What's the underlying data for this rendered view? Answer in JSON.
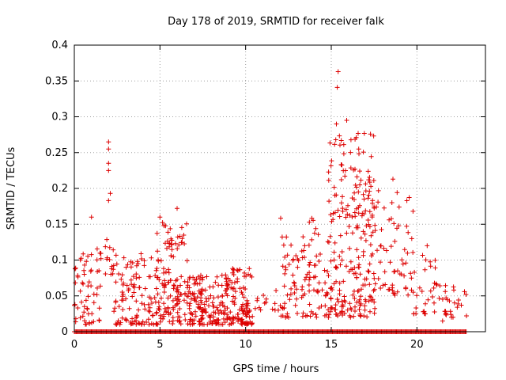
{
  "chart_data": {
    "type": "scatter",
    "title": "Day 178 of 2019, SRMTID for receiver falk",
    "xlabel": "GPS time / hours",
    "ylabel": "SRMTID / TECUs",
    "xlim": [
      0,
      24
    ],
    "ylim": [
      0,
      0.4
    ],
    "grid": true,
    "marker": "+",
    "marker_color": "#dd0000",
    "x_ticks": [
      0,
      5,
      10,
      15,
      20
    ],
    "x_tick_labels": [
      "0",
      "5",
      "10",
      "15",
      "20"
    ],
    "y_ticks": [
      0,
      0.05,
      0.1,
      0.15,
      0.2,
      0.25,
      0.3,
      0.35,
      0.4
    ],
    "y_tick_labels": [
      "0",
      "0.05",
      "0.1",
      "0.15",
      "0.2",
      "0.25",
      "0.3",
      "0.35",
      "0.4"
    ],
    "notable_points": [
      {
        "x": 1.0,
        "y": 0.16
      },
      {
        "x": 2.0,
        "y": 0.265
      },
      {
        "x": 2.0,
        "y": 0.255
      },
      {
        "x": 2.0,
        "y": 0.235
      },
      {
        "x": 2.0,
        "y": 0.225
      },
      {
        "x": 2.1,
        "y": 0.193
      },
      {
        "x": 2.0,
        "y": 0.183
      },
      {
        "x": 5.0,
        "y": 0.16
      },
      {
        "x": 6.0,
        "y": 0.172
      },
      {
        "x": 15.4,
        "y": 0.363
      },
      {
        "x": 15.35,
        "y": 0.341
      },
      {
        "x": 15.3,
        "y": 0.29
      },
      {
        "x": 15.9,
        "y": 0.295
      },
      {
        "x": 16.6,
        "y": 0.255
      },
      {
        "x": 18.6,
        "y": 0.213
      },
      {
        "x": 19.7,
        "y": 0.13
      },
      {
        "x": 20.6,
        "y": 0.12
      },
      {
        "x": 21.0,
        "y": 0.04
      },
      {
        "x": 21.5,
        "y": 0.015
      }
    ],
    "clusters": [
      {
        "x_range": [
          0.0,
          1.6
        ],
        "y_range": [
          0.01,
          0.12
        ],
        "count": 60
      },
      {
        "x_range": [
          1.8,
          2.3
        ],
        "y_range": [
          0.08,
          0.14
        ],
        "count": 14
      },
      {
        "x_range": [
          2.3,
          4.8
        ],
        "y_range": [
          0.01,
          0.11
        ],
        "count": 110
      },
      {
        "x_range": [
          4.8,
          6.6
        ],
        "y_range": [
          0.01,
          0.16
        ],
        "count": 130
      },
      {
        "x_range": [
          6.6,
          8.9
        ],
        "y_range": [
          0.01,
          0.08
        ],
        "count": 150
      },
      {
        "x_range": [
          8.9,
          10.4
        ],
        "y_range": [
          0.01,
          0.09
        ],
        "count": 110
      },
      {
        "x_range": [
          10.5,
          12.0
        ],
        "y_range": [
          0.03,
          0.06
        ],
        "count": 14
      },
      {
        "x_range": [
          12.0,
          14.8
        ],
        "y_range": [
          0.02,
          0.16
        ],
        "count": 110
      },
      {
        "x_range": [
          14.8,
          17.6
        ],
        "y_range": [
          0.02,
          0.28
        ],
        "count": 240
      },
      {
        "x_range": [
          17.6,
          19.8
        ],
        "y_range": [
          0.05,
          0.2
        ],
        "count": 60
      },
      {
        "x_range": [
          19.8,
          21.4
        ],
        "y_range": [
          0.02,
          0.11
        ],
        "count": 30
      },
      {
        "x_range": [
          21.4,
          22.9
        ],
        "y_range": [
          0.02,
          0.07
        ],
        "count": 25
      }
    ],
    "zero_baseline": {
      "y": 0,
      "x_range": [
        0.0,
        22.9
      ],
      "step": 0.055
    }
  }
}
